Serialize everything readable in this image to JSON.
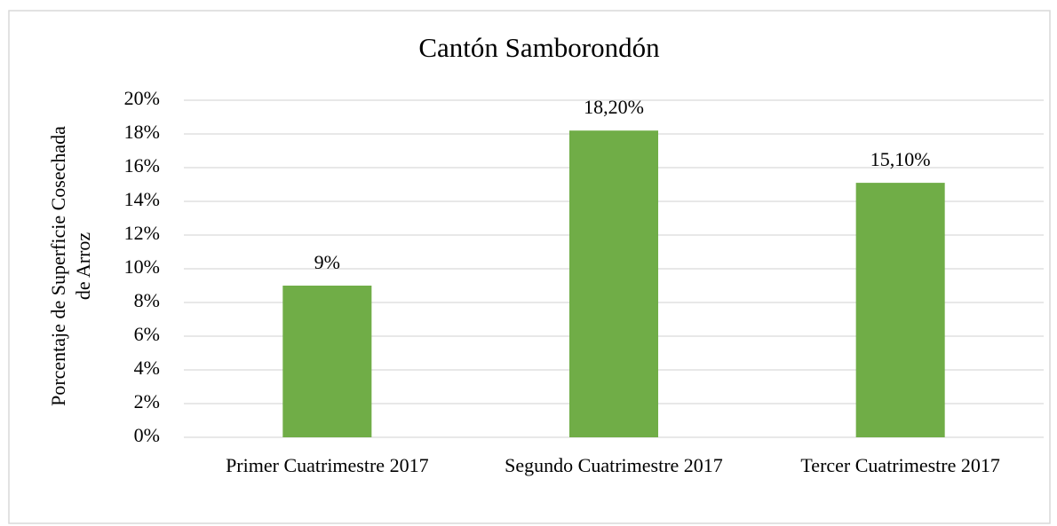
{
  "chart_data": {
    "type": "bar",
    "title": "Cantón Samborondón",
    "ylabel": [
      "Porcentaje de Superficie Cosechada",
      "de Arroz"
    ],
    "categories": [
      "Primer Cuatrimestre 2017",
      "Segundo Cuatrimestre 2017",
      "Tercer Cuatrimestre 2017"
    ],
    "values": [
      9,
      18.2,
      15.1
    ],
    "value_labels": [
      "9%",
      "18,20%",
      "15,10%"
    ],
    "color": "#70ad47",
    "ylim": [
      0,
      20
    ],
    "yticks": [
      {
        "value": 0,
        "label": "0%"
      },
      {
        "value": 2,
        "label": "2%"
      },
      {
        "value": 4,
        "label": "4%"
      },
      {
        "value": 6,
        "label": "6%"
      },
      {
        "value": 8,
        "label": "8%"
      },
      {
        "value": 10,
        "label": "10%"
      },
      {
        "value": 12,
        "label": "12%"
      },
      {
        "value": 14,
        "label": "14%"
      },
      {
        "value": 16,
        "label": "16%"
      },
      {
        "value": 18,
        "label": "18%"
      },
      {
        "value": 20,
        "label": "20%"
      }
    ],
    "grid": true
  }
}
